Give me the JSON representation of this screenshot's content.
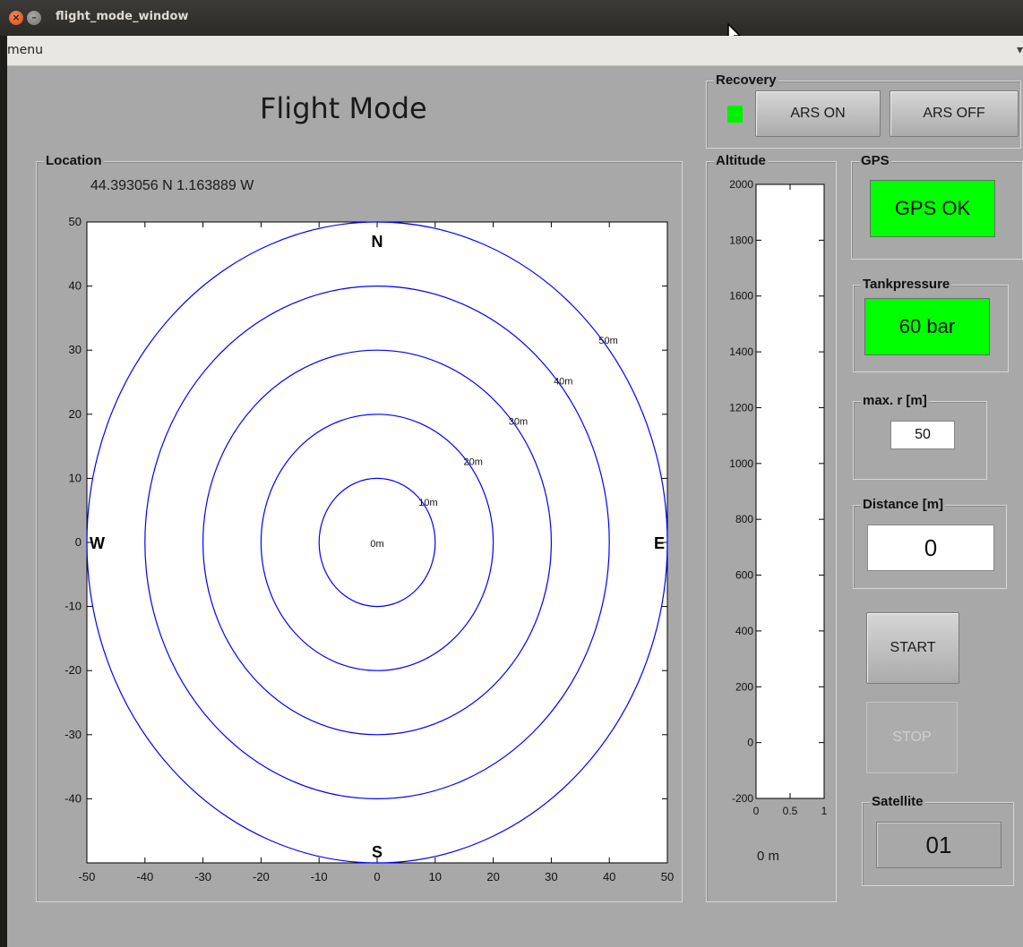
{
  "window": {
    "title": "flight_mode_window",
    "close_glyph": "×",
    "minimize_glyph": "–"
  },
  "menubar": {
    "menu_label": "menu",
    "overflow_glyph": "▾"
  },
  "app": {
    "title": "Flight Mode"
  },
  "recovery": {
    "label": "Recovery",
    "indicator_color": "#00f000",
    "ars_on_label": "ARS ON",
    "ars_off_label": "ARS OFF"
  },
  "location": {
    "label": "Location",
    "coordinates": "44.393056 N  1.163889 W",
    "plot": {
      "x_ticks": [
        "-50",
        "-40",
        "-30",
        "-20",
        "-10",
        "0",
        "10",
        "20",
        "30",
        "40",
        "50"
      ],
      "y_ticks": [
        "50",
        "40",
        "30",
        "20",
        "10",
        "0",
        "-10",
        "-20",
        "-30",
        "-40"
      ],
      "rings": [
        {
          "r": 10,
          "label": "10m"
        },
        {
          "r": 20,
          "label": "20m"
        },
        {
          "r": 30,
          "label": "30m"
        },
        {
          "r": 40,
          "label": "40m"
        },
        {
          "r": 50,
          "label": "50m"
        }
      ],
      "center_label": "0m",
      "compass": {
        "n": "N",
        "s": "S",
        "e": "E",
        "w": "W"
      },
      "ring_color": "#0000ff"
    }
  },
  "altitude": {
    "label": "Altitude",
    "y_ticks": [
      "2000",
      "1800",
      "1600",
      "1400",
      "1200",
      "1000",
      "800",
      "600",
      "400",
      "200",
      "0",
      "-200"
    ],
    "x_ticks": [
      "0",
      "0.5",
      "1"
    ],
    "readout": "0 m"
  },
  "gps": {
    "label": "GPS",
    "status": "GPS OK",
    "status_color": "#00ff00"
  },
  "tank": {
    "label": "Tankpressure",
    "value": "60 bar",
    "status_color": "#00ff00"
  },
  "max_r": {
    "label": "max. r [m]",
    "value": "50"
  },
  "distance": {
    "label": "Distance [m]",
    "value": "0"
  },
  "controls": {
    "start_label": "START",
    "stop_label": "STOP"
  },
  "satellite": {
    "label": "Satellite",
    "value": "01"
  }
}
